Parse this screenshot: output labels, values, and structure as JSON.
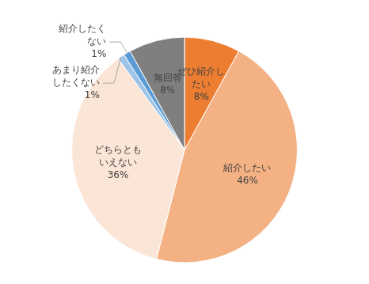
{
  "chart_data": {
    "type": "pie",
    "categories": [
      "ぜひ紹介したい",
      "紹介したい",
      "どちらともいえない",
      "あまり紹介したくない",
      "紹介したくない",
      "無回答"
    ],
    "values": [
      8,
      46,
      36,
      1,
      1,
      8
    ],
    "value_labels": [
      "8%",
      "46%",
      "36%",
      "1%",
      "1%",
      "8%"
    ],
    "colors": [
      "#ed7d31",
      "#f4b183",
      "#fbe5d6",
      "#9dc3e6",
      "#5b9bd5",
      "#7f7f7f"
    ],
    "data_labels": true
  }
}
